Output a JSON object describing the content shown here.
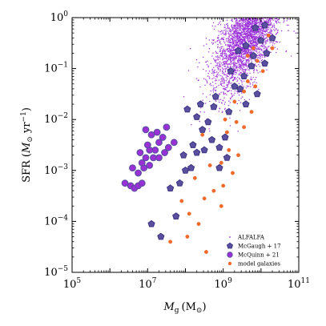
{
  "chart_data": {
    "type": "scatter",
    "xlabel_main": "M",
    "xlabel_sub": "g",
    "xlabel_unit": "(M",
    "xlabel_unit_sub": "⊙",
    "xlabel_close": ")",
    "ylabel_main": "SFR (",
    "ylabel_unit": "M",
    "ylabel_unit_sub": "⊙",
    "ylabel_rest": " yr",
    "ylabel_exp": "−1",
    "ylabel_close": ")",
    "x_scale": "log",
    "y_scale": "log",
    "xlim": [
      100000,
      100000000000
    ],
    "ylim": [
      1e-05,
      1
    ],
    "x_ticks": [
      {
        "value": 100000,
        "base": "10",
        "exp": "5"
      },
      {
        "value": 10000000,
        "base": "10",
        "exp": "7"
      },
      {
        "value": 1000000000,
        "base": "10",
        "exp": "9"
      },
      {
        "value": 100000000000,
        "base": "10",
        "exp": "11"
      }
    ],
    "y_ticks": [
      {
        "value": 1,
        "base": "10",
        "exp": "0"
      },
      {
        "value": 0.1,
        "base": "10",
        "exp": "−1"
      },
      {
        "value": 0.01,
        "base": "10",
        "exp": "−2"
      },
      {
        "value": 0.001,
        "base": "10",
        "exp": "−3"
      },
      {
        "value": 0.0001,
        "base": "10",
        "exp": "−4"
      },
      {
        "value": 1e-05,
        "base": "10",
        "exp": "−5"
      }
    ],
    "legend_position": "lower right",
    "series": [
      {
        "name": "ALFALFA",
        "marker": "dot",
        "color": "#9b30d9",
        "cloud": {
          "log_x_mean": 9.65,
          "log_x_sd": 0.45,
          "log_y_mean": -0.35,
          "log_y_sd": 0.42,
          "n": 3500
        }
      },
      {
        "name": "McGaugh + 17",
        "marker": "pentagon",
        "color": "#5b4fa0",
        "edge": "#3b3480",
        "points": [
          [
            7.35,
            -4.3
          ],
          [
            7.1,
            -4.05
          ],
          [
            7.6,
            -3.35
          ],
          [
            7.85,
            -3.25
          ],
          [
            8.0,
            -3.0
          ],
          [
            8.15,
            -2.95
          ],
          [
            8.3,
            -2.65
          ],
          [
            8.5,
            -2.6
          ],
          [
            7.95,
            -2.7
          ],
          [
            8.2,
            -2.5
          ],
          [
            8.45,
            -2.2
          ],
          [
            8.6,
            -2.05
          ],
          [
            8.9,
            -2.55
          ],
          [
            8.7,
            -2.4
          ],
          [
            9.05,
            -2.35
          ],
          [
            8.3,
            -1.95
          ],
          [
            8.05,
            -1.8
          ],
          [
            8.4,
            -1.7
          ],
          [
            8.75,
            -1.75
          ],
          [
            9.15,
            -1.85
          ],
          [
            8.8,
            -1.55
          ],
          [
            9.45,
            -1.4
          ],
          [
            9.3,
            -1.35
          ],
          [
            9.6,
            -1.7
          ],
          [
            9.9,
            -1.5
          ],
          [
            9.2,
            -1.05
          ],
          [
            9.55,
            -1.15
          ],
          [
            9.75,
            -0.95
          ],
          [
            10.1,
            -0.9
          ],
          [
            9.4,
            -0.65
          ],
          [
            9.8,
            -0.75
          ],
          [
            10.15,
            -0.7
          ],
          [
            9.6,
            -0.55
          ],
          [
            10.0,
            -0.45
          ],
          [
            10.3,
            -0.4
          ],
          [
            10.1,
            -0.15
          ],
          [
            9.85,
            -0.2
          ],
          [
            8.9,
            -2.95
          ],
          [
            9.1,
            -2.75
          ],
          [
            7.75,
            -3.9
          ]
        ]
      },
      {
        "name": "McQuinn + 21",
        "marker": "circle",
        "color": "#9b30d9",
        "edge": "#5b4fa0",
        "points": [
          [
            6.4,
            -3.25
          ],
          [
            6.55,
            -3.3
          ],
          [
            6.65,
            -3.35
          ],
          [
            6.75,
            -3.3
          ],
          [
            6.85,
            -3.25
          ],
          [
            6.75,
            -3.05
          ],
          [
            6.9,
            -2.95
          ],
          [
            6.6,
            -2.95
          ],
          [
            7.05,
            -2.9
          ],
          [
            7.15,
            -2.75
          ],
          [
            7.3,
            -2.75
          ],
          [
            6.95,
            -2.75
          ],
          [
            7.05,
            -2.6
          ],
          [
            7.2,
            -2.6
          ],
          [
            7.0,
            -2.5
          ],
          [
            7.3,
            -2.45
          ],
          [
            7.55,
            -2.55
          ],
          [
            7.4,
            -2.35
          ],
          [
            7.25,
            -2.25
          ],
          [
            7.5,
            -2.15
          ],
          [
            6.8,
            -2.65
          ],
          [
            6.95,
            -2.2
          ],
          [
            7.45,
            -2.65
          ],
          [
            7.7,
            -2.45
          ],
          [
            7.1,
            -2.3
          ],
          [
            6.85,
            -2.85
          ]
        ]
      },
      {
        "name": "model galaxies",
        "marker": "circle",
        "color": "#f06a2c",
        "edge": "#f06a2c",
        "points": [
          [
            7.6,
            -4.4
          ],
          [
            8.05,
            -4.3
          ],
          [
            8.55,
            -4.6
          ],
          [
            8.35,
            -4.05
          ],
          [
            8.1,
            -3.85
          ],
          [
            7.9,
            -3.6
          ],
          [
            8.75,
            -3.4
          ],
          [
            9.0,
            -3.3
          ],
          [
            8.5,
            -3.55
          ],
          [
            8.25,
            -3.15
          ],
          [
            8.95,
            -3.7
          ],
          [
            8.65,
            -2.9
          ],
          [
            8.95,
            -2.85
          ],
          [
            9.15,
            -2.6
          ],
          [
            9.4,
            -2.7
          ],
          [
            9.1,
            -2.25
          ],
          [
            9.35,
            -2.05
          ],
          [
            9.05,
            -2.0
          ],
          [
            9.55,
            -2.15
          ],
          [
            9.3,
            -1.65
          ],
          [
            9.75,
            -1.85
          ],
          [
            9.55,
            -1.45
          ],
          [
            9.85,
            -1.35
          ],
          [
            9.65,
            -1.25
          ],
          [
            10.05,
            -1.05
          ],
          [
            9.9,
            -0.85
          ],
          [
            10.3,
            -0.6
          ],
          [
            9.8,
            -0.6
          ],
          [
            10.2,
            -0.35
          ],
          [
            9.65,
            -0.75
          ],
          [
            8.45,
            -2.3
          ],
          [
            9.25,
            -3.05
          ]
        ]
      }
    ]
  }
}
